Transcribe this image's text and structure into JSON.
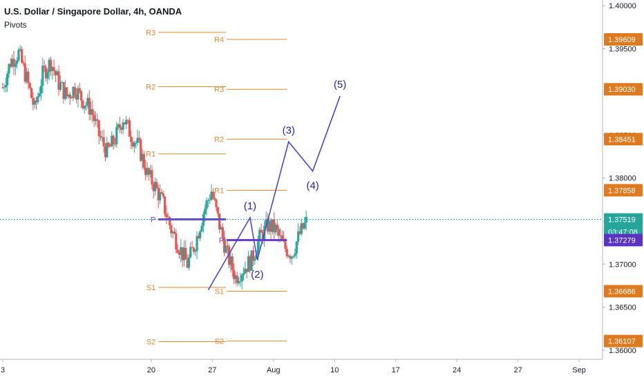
{
  "header": {
    "title": "U.S. Dollar / Singapore Dollar, 4h, OANDA",
    "indicator": "Pivots"
  },
  "colors": {
    "up": "#26a69a",
    "down": "#ef5350",
    "pivot": "#e08a2c",
    "pivot_p": "#6a3fcf",
    "wave": "#4a45d6",
    "last_price": "#26a69a",
    "tag_orange": "#e07a1e",
    "tag_purple": "#5b33c4",
    "tag_green": "#26a69a"
  },
  "chart_data": {
    "type": "candlestick",
    "x_axis": {
      "ticks": [
        {
          "label": "3",
          "day": 3
        },
        {
          "label": "20",
          "day": 20
        },
        {
          "label": "27",
          "day": 27
        },
        {
          "label": "Aug",
          "day": 34
        },
        {
          "label": "10",
          "day": 41
        },
        {
          "label": "17",
          "day": 48
        },
        {
          "label": "24",
          "day": 55
        },
        {
          "label": "27",
          "day": 62
        },
        {
          "label": "Sep",
          "day": 69
        }
      ],
      "range": [
        3,
        72
      ]
    },
    "y_axis": {
      "ticks": [
        "1.40000",
        "1.39500",
        "1.39000",
        "1.38500",
        "1.38000",
        "1.37500",
        "1.37000",
        "1.36500",
        "1.36000"
      ],
      "range": [
        1.3596,
        1.4001
      ]
    },
    "price_tags": [
      {
        "label": "1.39609",
        "value": 1.39609,
        "style": "orange"
      },
      {
        "label": "1.39030",
        "value": 1.3903,
        "style": "orange"
      },
      {
        "label": "1.38451",
        "value": 1.38451,
        "style": "orange"
      },
      {
        "label": "1.37858",
        "value": 1.37858,
        "style": "orange"
      },
      {
        "label": "1.37519",
        "value": 1.37519,
        "style": "green"
      },
      {
        "label": "03:47:08",
        "value": 1.37375,
        "style": "green"
      },
      {
        "label": "1.37279",
        "value": 1.37279,
        "style": "purple"
      },
      {
        "label": "1.36686",
        "value": 1.36686,
        "style": "orange"
      },
      {
        "label": "1.36107",
        "value": 1.36107,
        "style": "orange"
      }
    ],
    "last_price": 1.37519,
    "pivot_levels": [
      {
        "name": "R3",
        "value": 1.3969,
        "x0": 22.4,
        "x1": 30.8,
        "labels": [
          {
            "text": "R3",
            "side": "left"
          }
        ]
      },
      {
        "name": "R2",
        "value": 1.3906,
        "x0": 22.4,
        "x1": 30.8,
        "labels": [
          {
            "text": "R2",
            "side": "left"
          }
        ]
      },
      {
        "name": "R1",
        "value": 1.3828,
        "x0": 22.4,
        "x1": 30.8,
        "labels": [
          {
            "text": "R1",
            "side": "left"
          }
        ]
      },
      {
        "name": "P",
        "value": 1.3752,
        "x0": 22.4,
        "x1": 30.8,
        "labels": [
          {
            "text": "P",
            "side": "left"
          }
        ]
      },
      {
        "name": "S1",
        "value": 1.3673,
        "x0": 22.4,
        "x1": 30.8,
        "labels": [
          {
            "text": "S1",
            "side": "left"
          }
        ]
      },
      {
        "name": "S2",
        "value": 1.361,
        "x0": 22.4,
        "x1": 30.8,
        "labels": [
          {
            "text": "S2",
            "side": "left"
          }
        ]
      },
      {
        "name": "R4",
        "value": 1.39609,
        "x0": 30.9,
        "x1": 38.4,
        "labels": [
          {
            "text": "R4",
            "side": "left"
          }
        ]
      },
      {
        "name": "R3",
        "value": 1.3903,
        "x0": 30.9,
        "x1": 38.4,
        "labels": [
          {
            "text": "R3",
            "side": "left"
          }
        ]
      },
      {
        "name": "R2",
        "value": 1.38451,
        "x0": 30.9,
        "x1": 38.4,
        "labels": [
          {
            "text": "R2",
            "side": "left"
          }
        ]
      },
      {
        "name": "R1",
        "value": 1.37858,
        "x0": 30.9,
        "x1": 38.4,
        "labels": [
          {
            "text": "R1",
            "side": "left"
          }
        ]
      },
      {
        "name": "P",
        "value": 1.37279,
        "x0": 30.9,
        "x1": 38.4,
        "labels": [
          {
            "text": "P",
            "side": "left"
          }
        ]
      },
      {
        "name": "S1",
        "value": 1.36686,
        "x0": 30.9,
        "x1": 38.4,
        "labels": [
          {
            "text": "S1",
            "side": "left"
          }
        ]
      },
      {
        "name": "S2",
        "value": 1.36107,
        "x0": 30.9,
        "x1": 38.4,
        "labels": [
          {
            "text": "S2",
            "side": "left"
          }
        ]
      }
    ],
    "wave_path": [
      {
        "day": 26.2,
        "price": 1.367,
        "label": ""
      },
      {
        "day": 31.4,
        "price": 1.3754,
        "label": "(1)"
      },
      {
        "day": 32.3,
        "price": 1.3705,
        "label": "(2)"
      },
      {
        "day": 36.2,
        "price": 1.3842,
        "label": "(3)"
      },
      {
        "day": 39.2,
        "price": 1.3808,
        "label": "(4)"
      },
      {
        "day": 42.6,
        "price": 1.3895,
        "label": "(5)"
      }
    ],
    "candles": []
  }
}
